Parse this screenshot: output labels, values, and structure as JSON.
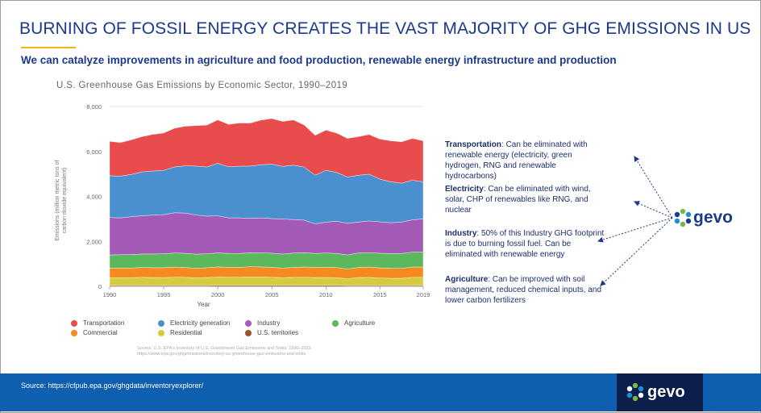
{
  "slide": {
    "title": "BURNING OF FOSSIL ENERGY CREATES THE VAST MAJORITY OF GHG EMISSIONS IN US",
    "subtitle": "We can catalyze improvements in agriculture and food production, renewable energy infrastructure and production",
    "footer_source": "Source: https://cfpub.epa.gov/ghgdata/inventoryexplorer/",
    "logo_text": "gevo",
    "brand_color": "#1b3a8c",
    "footer_color": "#0f5fb0"
  },
  "notes": [
    {
      "label": "Transportation",
      "text": ": Can be eliminated with renewable energy (electricity, green hydrogen, RNG and renewable hydrocarbons)"
    },
    {
      "label": "Electricity",
      "text": ": Can be eliminated with wind, solar, CHP of renewables like RNG, and nuclear"
    },
    {
      "label": "Industry",
      "text": ": 50% of this Industry GHG footprint is due to burning fossil fuel. Can be eliminated with renewable energy"
    },
    {
      "label": "Agriculture",
      "text": ": Can be improved with soil management, reduced chemical inputs, and lower carbon fertilizers"
    }
  ],
  "chart_data": {
    "type": "area",
    "stacked": true,
    "title": "U.S. Greenhouse Gas Emissions by Economic Sector, 1990–2019",
    "xlabel": "Year",
    "ylabel": "Emissions (million metric tons of carbon dioxide equivalent)",
    "xlim": [
      1990,
      2019
    ],
    "ylim": [
      0,
      8000
    ],
    "yticks": [
      "0",
      "2,000",
      "4,000",
      "6,000",
      "8,000"
    ],
    "xticks": [
      "1990",
      "1995",
      "2000",
      "2005",
      "2010",
      "2015",
      "2019"
    ],
    "x": [
      1990,
      1991,
      1992,
      1993,
      1994,
      1995,
      1996,
      1997,
      1998,
      1999,
      2000,
      2001,
      2002,
      2003,
      2004,
      2005,
      2006,
      2007,
      2008,
      2009,
      2010,
      2011,
      2012,
      2013,
      2014,
      2015,
      2016,
      2017,
      2018,
      2019
    ],
    "series": [
      {
        "name": "U.S. territories",
        "color": "#a0522d",
        "values": [
          40,
          40,
          40,
          40,
          40,
          40,
          40,
          40,
          40,
          40,
          45,
          45,
          45,
          45,
          45,
          45,
          45,
          45,
          45,
          45,
          45,
          45,
          40,
          40,
          40,
          40,
          40,
          40,
          40,
          40
        ]
      },
      {
        "name": "Residential",
        "color": "#d4cc3a",
        "values": [
          340,
          345,
          345,
          360,
          350,
          350,
          370,
          360,
          340,
          350,
          370,
          360,
          360,
          375,
          370,
          360,
          340,
          355,
          360,
          350,
          345,
          340,
          300,
          350,
          360,
          330,
          320,
          320,
          360,
          360
        ]
      },
      {
        "name": "Commercial",
        "color": "#f58a1f",
        "values": [
          430,
          430,
          430,
          440,
          440,
          440,
          450,
          440,
          420,
          440,
          450,
          440,
          440,
          450,
          450,
          440,
          430,
          440,
          460,
          450,
          460,
          450,
          430,
          450,
          460,
          450,
          440,
          440,
          460,
          460
        ]
      },
      {
        "name": "Agriculture",
        "color": "#5cb85c",
        "values": [
          590,
          590,
          600,
          600,
          610,
          620,
          620,
          630,
          630,
          620,
          620,
          620,
          620,
          620,
          620,
          630,
          620,
          640,
          630,
          620,
          630,
          630,
          630,
          640,
          640,
          650,
          660,
          660,
          660,
          660
        ]
      },
      {
        "name": "Industry",
        "color": "#a45bb8",
        "values": [
          1660,
          1640,
          1680,
          1700,
          1730,
          1740,
          1790,
          1790,
          1740,
          1670,
          1650,
          1580,
          1580,
          1530,
          1560,
          1540,
          1560,
          1490,
          1450,
          1310,
          1380,
          1430,
          1400,
          1380,
          1410,
          1400,
          1370,
          1400,
          1440,
          1480
        ]
      },
      {
        "name": "Electricity generation",
        "color": "#4a90cf",
        "values": [
          1860,
          1860,
          1880,
          1950,
          1960,
          1970,
          2040,
          2100,
          2180,
          2190,
          2340,
          2270,
          2300,
          2330,
          2360,
          2420,
          2340,
          2420,
          2360,
          2170,
          2300,
          2170,
          2060,
          2080,
          2080,
          1900,
          1820,
          1730,
          1760,
          1650
        ]
      },
      {
        "name": "Transportation",
        "color": "#e84c4c",
        "values": [
          1530,
          1490,
          1540,
          1570,
          1630,
          1660,
          1720,
          1760,
          1800,
          1860,
          1930,
          1890,
          1920,
          1910,
          1990,
          2030,
          2000,
          2010,
          1870,
          1770,
          1790,
          1750,
          1720,
          1720,
          1760,
          1780,
          1820,
          1840,
          1860,
          1820
        ]
      }
    ],
    "legend": [
      "Transportation",
      "Electricity generation",
      "Industry",
      "Agriculture",
      "Commercial",
      "Residential",
      "U.S. territories"
    ],
    "source_note": "Source: U.S. EPA's Inventory of U.S. Greenhouse Gas Emissions and Sinks: 1990–2019.",
    "source_url": "https://www.epa.gov/ghgemissions/inventory-us-greenhouse-gas-emissions-and-sinks"
  }
}
